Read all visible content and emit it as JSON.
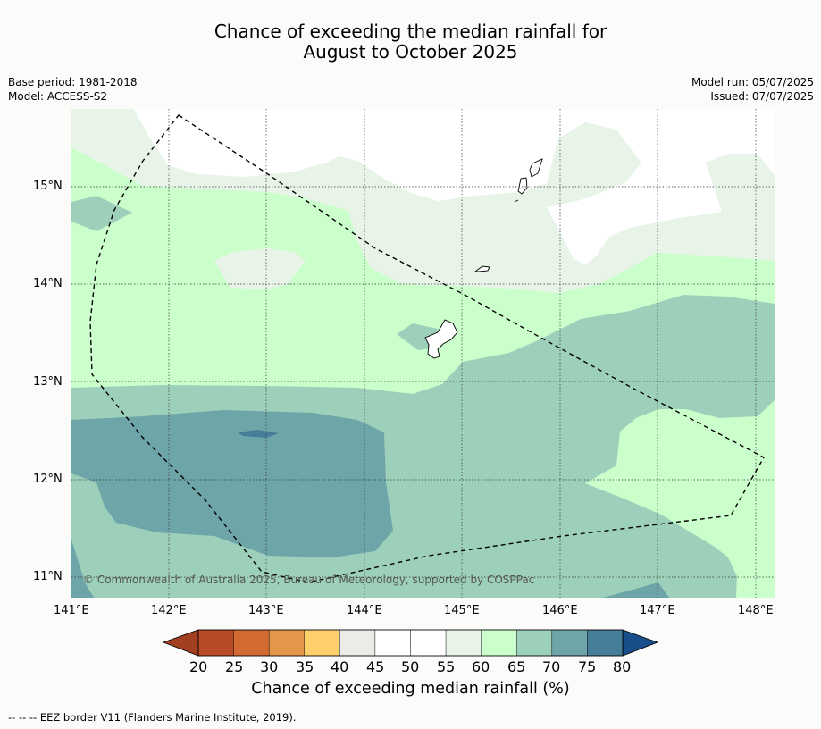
{
  "title_line1": "Chance of exceeding the median rainfall for",
  "title_line2": "August to October 2025",
  "meta_left": {
    "base_period": "Base period: 1981-2018",
    "model": "Model: ACCESS-S2"
  },
  "meta_right": {
    "model_run": "Model run: 05/07/2025",
    "issued": "Issued: 07/07/2025"
  },
  "copyright": "© Commonwealth of Australia 2025, Bureau of Meteorology, supported by COSPPac",
  "lat_labels": [
    "15°N",
    "14°N",
    "13°N",
    "12°N",
    "11°N"
  ],
  "lon_labels": [
    "141°E",
    "142°E",
    "143°E",
    "144°E",
    "145°E",
    "146°E",
    "147°E",
    "148°E"
  ],
  "colorbar": {
    "ticks": [
      "20",
      "25",
      "30",
      "35",
      "40",
      "45",
      "50",
      "55",
      "60",
      "65",
      "70",
      "75",
      "80"
    ],
    "title": "Chance of exceeding median rainfall (%)",
    "colors": [
      "#a23f20",
      "#b94a26",
      "#d26a32",
      "#e39749",
      "#fdd06b",
      "#ebebe7",
      "#ffffff",
      "#ffffff",
      "#e9f4e9",
      "#caffcb",
      "#9dd0ba",
      "#6ea5a8",
      "#467e9a",
      "#194e8a"
    ]
  },
  "footer": "--  --  -- EEZ border V11 (Flanders Marine Institute, 2019).",
  "chart_data": {
    "type": "map",
    "lon_range": [
      141,
      148.2
    ],
    "lat_range": [
      10.8,
      15.8
    ],
    "variable": "Chance of exceeding median rainfall (%)",
    "period": "August to October 2025"
  }
}
